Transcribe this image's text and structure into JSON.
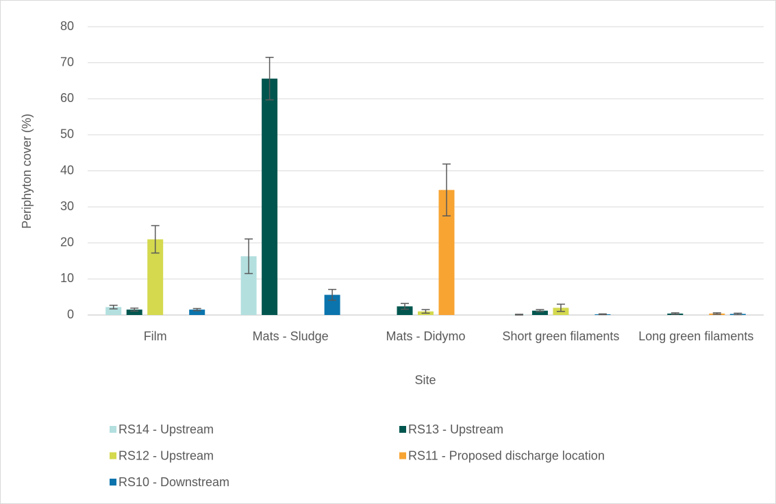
{
  "chart_data": {
    "type": "bar",
    "y_label": "Periphyton cover (%)",
    "x_label": "Site",
    "categories": [
      "Film",
      "Mats - Sludge",
      "Mats - Didymo",
      "Short green filaments",
      "Long green filaments"
    ],
    "series": [
      {
        "name": "RS14 - Upstream",
        "color": "#b3dfdf",
        "values": [
          2.2,
          16.3,
          0,
          0.1,
          0
        ],
        "errors": [
          0.5,
          4.8,
          null,
          0.1,
          null
        ]
      },
      {
        "name": "RS13 - Upstream",
        "color": "#00564f",
        "values": [
          1.5,
          65.6,
          2.4,
          1.2,
          0.4
        ],
        "errors": [
          0.4,
          5.9,
          0.8,
          0.3,
          0.2
        ]
      },
      {
        "name": "RS12 - Upstream",
        "color": "#d4d94e",
        "values": [
          21,
          0,
          1,
          2,
          0
        ],
        "errors": [
          3.8,
          null,
          0.5,
          1,
          null
        ]
      },
      {
        "name": "RS11 - Proposed discharge location",
        "color": "#f7a433",
        "values": [
          0,
          0,
          34.7,
          0,
          0.4
        ],
        "errors": [
          null,
          null,
          7.2,
          null,
          0.2
        ]
      },
      {
        "name": "RS10 - Downstream",
        "color": "#0b74ad",
        "values": [
          1.5,
          5.6,
          0,
          0.2,
          0.3
        ],
        "errors": [
          0.3,
          1.5,
          null,
          0.1,
          0.2
        ]
      }
    ],
    "ylim": [
      0,
      80
    ],
    "yticks": [
      0,
      10,
      20,
      30,
      40,
      50,
      60,
      70,
      80
    ],
    "grid": true
  }
}
